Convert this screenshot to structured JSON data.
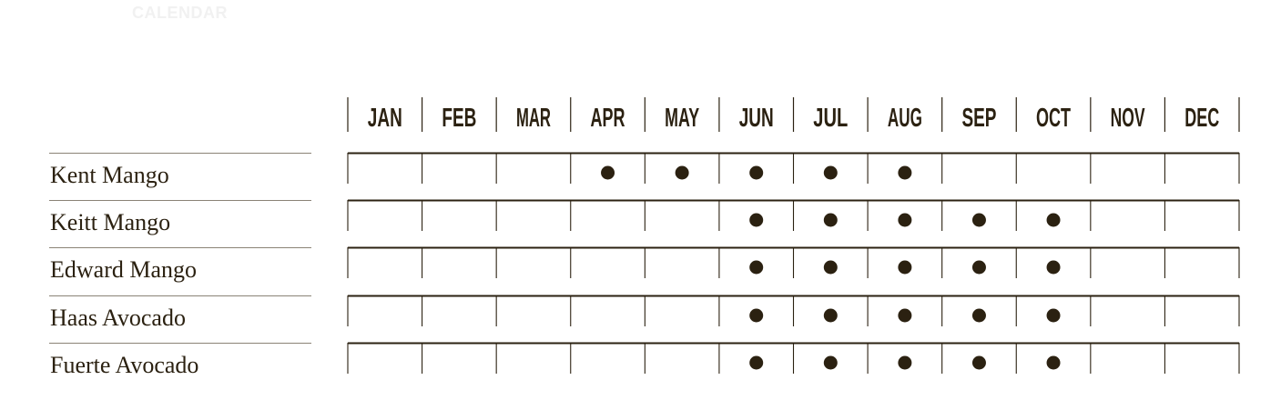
{
  "page": {
    "faint_heading": "CALENDAR"
  },
  "chart_data": {
    "type": "table",
    "months": [
      "JAN",
      "FEB",
      "MAR",
      "APR",
      "MAY",
      "JUN",
      "JUL",
      "AUG",
      "SEP",
      "OCT",
      "NOV",
      "DEC"
    ],
    "rows": [
      {
        "label": "Kent Mango",
        "in_season": [
          "APR",
          "MAY",
          "JUN",
          "JUL",
          "AUG"
        ]
      },
      {
        "label": "Keitt Mango",
        "in_season": [
          "JUN",
          "JUL",
          "AUG",
          "SEP",
          "OCT"
        ]
      },
      {
        "label": "Edward Mango",
        "in_season": [
          "JUN",
          "JUL",
          "AUG",
          "SEP",
          "OCT"
        ]
      },
      {
        "label": "Haas Avocado",
        "in_season": [
          "JUN",
          "JUL",
          "AUG",
          "SEP",
          "OCT"
        ]
      },
      {
        "label": "Fuerte Avocado",
        "in_season": [
          "JUN",
          "JUL",
          "AUG",
          "SEP",
          "OCT"
        ]
      }
    ],
    "colors": {
      "ink": "#2b2111",
      "row_rule": "#8a8376",
      "faint_text": "#f1f1f1"
    }
  }
}
